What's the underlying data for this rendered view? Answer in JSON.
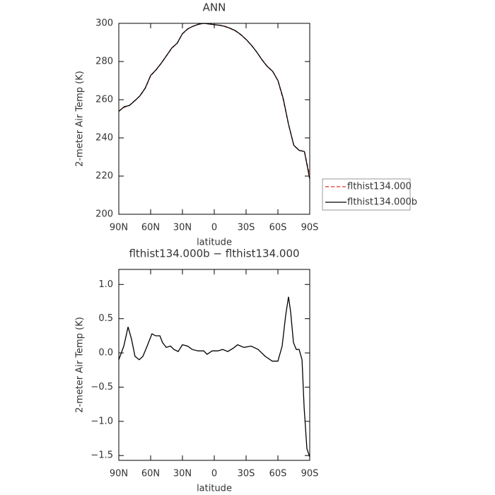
{
  "chart_data": [
    {
      "type": "line",
      "title": "ANN",
      "xlabel": "latitude",
      "ylabel": "2-meter Air Temp (K)",
      "x": [
        90,
        85,
        80,
        75,
        70,
        65,
        60,
        55,
        50,
        45,
        40,
        35,
        30,
        25,
        20,
        15,
        10,
        5,
        0,
        -5,
        -10,
        -15,
        -20,
        -25,
        -30,
        -35,
        -40,
        -45,
        -50,
        -55,
        -60,
        -65,
        -70,
        -75,
        -80,
        -85,
        -90
      ],
      "series": [
        {
          "name": "flthist134.000",
          "color": "#e0302a",
          "dash": true,
          "values": [
            254,
            256,
            257,
            259.5,
            262,
            266,
            272.5,
            275.5,
            279,
            283,
            287,
            289.5,
            294.5,
            297,
            298.5,
            299.5,
            300,
            299.7,
            299.3,
            299,
            298.3,
            297.3,
            296,
            294,
            291.5,
            288.5,
            285,
            281,
            277.5,
            275,
            270,
            260,
            247,
            236,
            233.5,
            233,
            220
          ]
        },
        {
          "name": "flthist134.000b",
          "color": "#000000",
          "dash": false,
          "values": [
            253.9,
            256.3,
            257,
            259.4,
            262.1,
            266.2,
            272.7,
            275.6,
            279.1,
            283.1,
            287.1,
            289.6,
            294.6,
            297.1,
            298.5,
            299.5,
            300,
            299.7,
            299.3,
            299,
            298.4,
            297.4,
            296.1,
            294.1,
            291.6,
            288.6,
            285,
            280.9,
            277.4,
            274.9,
            270.1,
            260.7,
            247.2,
            236.1,
            233.5,
            232.8,
            218.5
          ]
        }
      ],
      "xlim": [
        90,
        -90
      ],
      "xticks": [
        {
          "value": 90,
          "label": "90N"
        },
        {
          "value": 60,
          "label": "60N"
        },
        {
          "value": 30,
          "label": "30N"
        },
        0,
        {
          "value": -30,
          "label": "30S"
        },
        {
          "value": -60,
          "label": "60S"
        },
        {
          "value": -90,
          "label": "90S"
        }
      ],
      "ylim": [
        200,
        300
      ],
      "yticks": [
        200,
        220,
        240,
        260,
        280,
        300
      ],
      "legend": "right"
    },
    {
      "type": "line",
      "title": "flthist134.000b − flthist134.000",
      "xlabel": "latitude",
      "ylabel": "2-meter Air Temp (K)",
      "x": [
        90,
        85.3,
        81.3,
        78,
        74.7,
        70.7,
        67.3,
        63.3,
        58.7,
        55.3,
        51.3,
        48.7,
        45.3,
        41.3,
        38,
        34,
        30,
        25.3,
        20.7,
        15.3,
        10,
        6.7,
        2,
        -3.3,
        -8,
        -12.7,
        -18,
        -22,
        -28,
        -34.7,
        -41.3,
        -48,
        -54.7,
        -60,
        -64,
        -67.3,
        -70,
        -72,
        -74.7,
        -77.3,
        -80,
        -82.7,
        -84.7,
        -87.3,
        -90
      ],
      "series": [
        {
          "name": "",
          "color": "#000000",
          "dash": false,
          "values": [
            -0.1,
            0.1,
            0.38,
            0.2,
            -0.05,
            -0.1,
            -0.05,
            0.1,
            0.28,
            0.25,
            0.25,
            0.15,
            0.08,
            0.1,
            0.05,
            0.02,
            0.12,
            0.1,
            0.05,
            0.03,
            0.03,
            -0.02,
            0.03,
            0.03,
            0.05,
            0.02,
            0.07,
            0.12,
            0.08,
            0.1,
            0.05,
            -0.05,
            -0.12,
            -0.12,
            0.1,
            0.55,
            0.82,
            0.6,
            0.15,
            0.05,
            0.05,
            -0.1,
            -0.8,
            -1.4,
            -1.52
          ]
        }
      ],
      "xlim": [
        90,
        -90
      ],
      "xticks": [
        {
          "value": 90,
          "label": "90N"
        },
        {
          "value": 60,
          "label": "60N"
        },
        {
          "value": 30,
          "label": "30N"
        },
        0,
        {
          "value": -30,
          "label": "30S"
        },
        {
          "value": -60,
          "label": "60S"
        },
        {
          "value": -90,
          "label": "90S"
        }
      ],
      "ylim": [
        -1.57,
        1.22
      ],
      "yticks": [
        {
          "value": -1.5,
          "label": "−1.5"
        },
        {
          "value": -1,
          "label": "−1.0"
        },
        {
          "value": -0.5,
          "label": "−0.5"
        },
        {
          "value": 0,
          "label": "0.0"
        },
        0.5,
        {
          "value": 1,
          "label": "1.0"
        }
      ]
    }
  ]
}
